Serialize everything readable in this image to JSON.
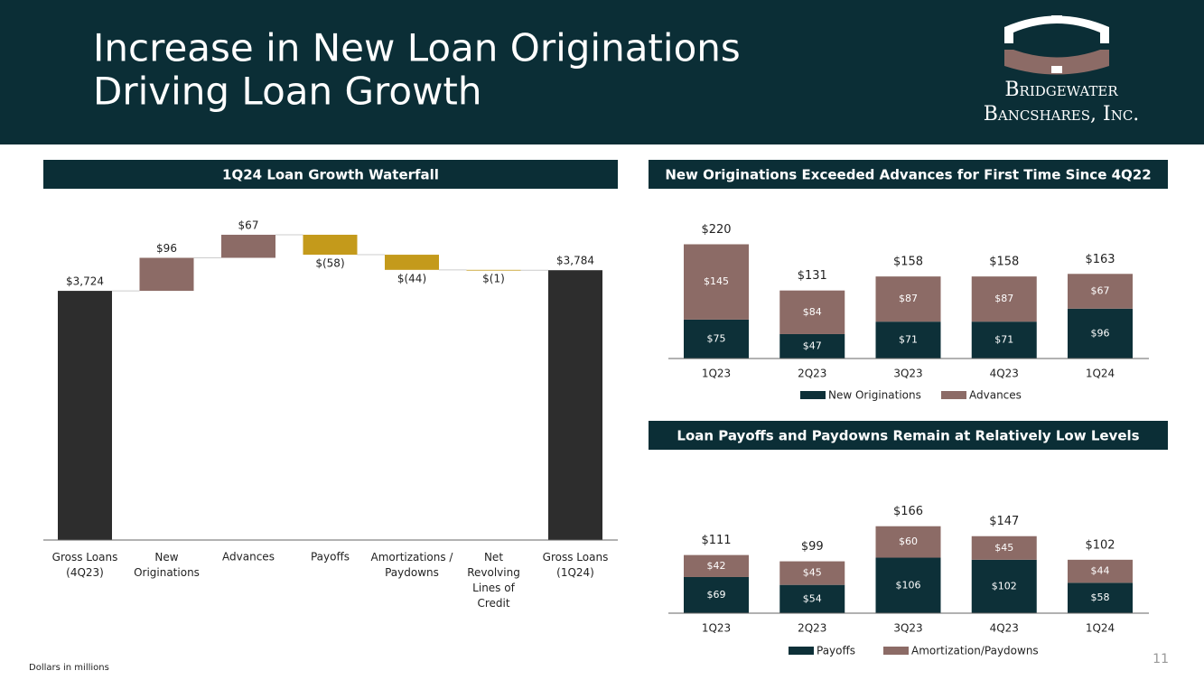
{
  "header": {
    "title": [
      "Increase in New Loan Originations",
      "Driving Loan Growth"
    ],
    "logo": [
      "Bridgewater",
      "Bancshares, Inc."
    ]
  },
  "footnote": "Dollars in millions",
  "page_number": "11",
  "chart_data": [
    {
      "type": "waterfall",
      "title": "1Q24 Loan Growth Waterfall",
      "categories": [
        "Gross Loans\n(4Q23)",
        "New\nOriginations",
        "Advances",
        "Payoffs",
        "Amortizations /\nPaydowns",
        "Net\nRevolving\nLines of\nCredit",
        "Gross Loans\n(1Q24)"
      ],
      "values": [
        3724,
        96,
        67,
        -58,
        -44,
        -1,
        3784
      ],
      "value_labels": [
        "$3,724",
        "$96",
        "$67",
        "$(58)",
        "$(44)",
        "$(1)",
        "$3,784"
      ],
      "measure": [
        "total",
        "relative",
        "relative",
        "relative",
        "relative",
        "relative",
        "total"
      ],
      "colors": [
        "#2d2d2d",
        "#8c6b66",
        "#8c6b66",
        "#c49a1b",
        "#c49a1b",
        "#c49a1b",
        "#2d2d2d"
      ],
      "ylim": [
        3000,
        3900
      ]
    },
    {
      "type": "stacked_bar",
      "title": "New Originations Exceeded Advances for First Time Since 4Q22",
      "categories": [
        "1Q23",
        "2Q23",
        "3Q23",
        "4Q23",
        "1Q24"
      ],
      "series": [
        {
          "name": "New Originations",
          "color": "#0d3038",
          "values": [
            75,
            47,
            71,
            71,
            96
          ],
          "value_labels": [
            "$75",
            "$47",
            "$71",
            "$71",
            "$96"
          ]
        },
        {
          "name": "Advances",
          "color": "#8c6b66",
          "values": [
            145,
            84,
            87,
            87,
            67
          ],
          "value_labels": [
            "$145",
            "$84",
            "$87",
            "$87",
            "$67"
          ]
        }
      ],
      "totals": [
        220,
        131,
        158,
        158,
        163
      ],
      "total_labels": [
        "$220",
        "$131",
        "$158",
        "$158",
        "$163"
      ],
      "ylim": [
        0,
        240
      ]
    },
    {
      "type": "stacked_bar",
      "title": "Loan Payoffs and Paydowns Remain at Relatively Low Levels",
      "categories": [
        "1Q23",
        "2Q23",
        "3Q23",
        "4Q23",
        "1Q24"
      ],
      "series": [
        {
          "name": "Payoffs",
          "color": "#0d3038",
          "values": [
            69,
            54,
            106,
            102,
            58
          ],
          "value_labels": [
            "$69",
            "$54",
            "$106",
            "$102",
            "$58"
          ]
        },
        {
          "name": "Amortization/Paydowns",
          "color": "#8c6b66",
          "values": [
            42,
            45,
            60,
            45,
            44
          ],
          "value_labels": [
            "$42",
            "$45",
            "$60",
            "$45",
            "$44"
          ]
        }
      ],
      "totals": [
        111,
        99,
        166,
        147,
        102
      ],
      "total_labels": [
        "$111",
        "$99",
        "$166",
        "$147",
        "$102"
      ],
      "ylim": [
        0,
        200
      ]
    }
  ]
}
